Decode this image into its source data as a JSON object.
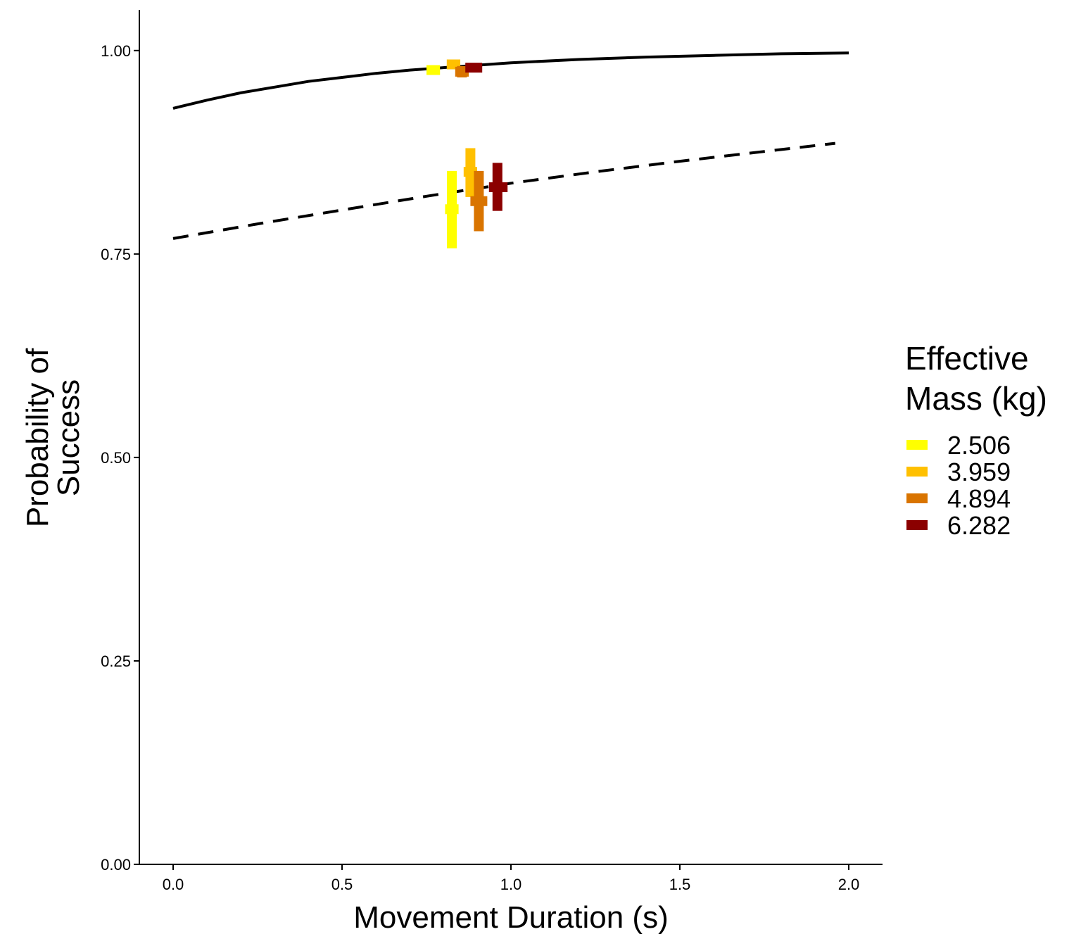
{
  "chart_data": {
    "type": "line",
    "xlabel": "Movement Duration (s)",
    "ylabel_lines": [
      "Probability of",
      "Success"
    ],
    "xlim": [
      -0.1,
      2.1
    ],
    "ylim": [
      0,
      1.05
    ],
    "x_ticks": [
      0.0,
      0.5,
      1.0,
      1.5,
      2.0
    ],
    "x_tick_labels": [
      "0.0",
      "0.5",
      "1.0",
      "1.5",
      "2.0"
    ],
    "y_ticks": [
      0.0,
      0.25,
      0.5,
      0.75,
      1.0
    ],
    "y_tick_labels": [
      "0.00",
      "0.25",
      "0.50",
      "0.75",
      "1.00"
    ],
    "grid": false,
    "legend": {
      "position": "right",
      "title_lines": [
        "Effective",
        "Mass (kg)"
      ],
      "entries": [
        {
          "label": "2.506",
          "color": "#ffff00"
        },
        {
          "label": "3.959",
          "color": "#ffc000"
        },
        {
          "label": "4.894",
          "color": "#d97400"
        },
        {
          "label": "6.282",
          "color": "#8b0000"
        }
      ]
    },
    "lines": [
      {
        "style": "solid",
        "color": "#000000",
        "x": [
          0.0,
          0.1,
          0.2,
          0.3,
          0.4,
          0.5,
          0.6,
          0.7,
          0.8,
          0.9,
          1.0,
          1.2,
          1.4,
          1.6,
          1.8,
          2.0
        ],
        "y": [
          0.929,
          0.939,
          0.948,
          0.955,
          0.962,
          0.967,
          0.972,
          0.976,
          0.979,
          0.982,
          0.985,
          0.989,
          0.992,
          0.994,
          0.996,
          0.997
        ]
      },
      {
        "style": "dashed",
        "color": "#000000",
        "x": [
          0.0,
          0.25,
          0.5,
          0.75,
          1.0,
          1.25,
          1.5,
          1.75,
          1.96
        ],
        "y": [
          0.769,
          0.787,
          0.804,
          0.821,
          0.837,
          0.851,
          0.864,
          0.876,
          0.886
        ]
      }
    ],
    "points": [
      {
        "series": "2.506",
        "x": 0.77,
        "y": 0.976,
        "ylo": 0.971,
        "yhi": 0.981,
        "xlo": 0.75,
        "xhi": 0.79
      },
      {
        "series": "3.959",
        "x": 0.83,
        "y": 0.983,
        "ylo": 0.979,
        "yhi": 0.988,
        "xlo": 0.81,
        "xhi": 0.85
      },
      {
        "series": "4.894",
        "x": 0.855,
        "y": 0.974,
        "ylo": 0.967,
        "yhi": 0.981,
        "xlo": 0.835,
        "xhi": 0.875
      },
      {
        "series": "6.282",
        "x": 0.89,
        "y": 0.979,
        "ylo": 0.974,
        "yhi": 0.984,
        "xlo": 0.865,
        "xhi": 0.915
      },
      {
        "series": "2.506",
        "x": 0.825,
        "y": 0.805,
        "ylo": 0.757,
        "yhi": 0.852,
        "xlo": 0.805,
        "xhi": 0.845
      },
      {
        "series": "3.959",
        "x": 0.88,
        "y": 0.851,
        "ylo": 0.82,
        "yhi": 0.88,
        "xlo": 0.86,
        "xhi": 0.9
      },
      {
        "series": "4.894",
        "x": 0.905,
        "y": 0.815,
        "ylo": 0.778,
        "yhi": 0.852,
        "xlo": 0.88,
        "xhi": 0.93
      },
      {
        "series": "6.282",
        "x": 0.96,
        "y": 0.832,
        "ylo": 0.803,
        "yhi": 0.862,
        "xlo": 0.935,
        "xhi": 0.99
      }
    ]
  }
}
